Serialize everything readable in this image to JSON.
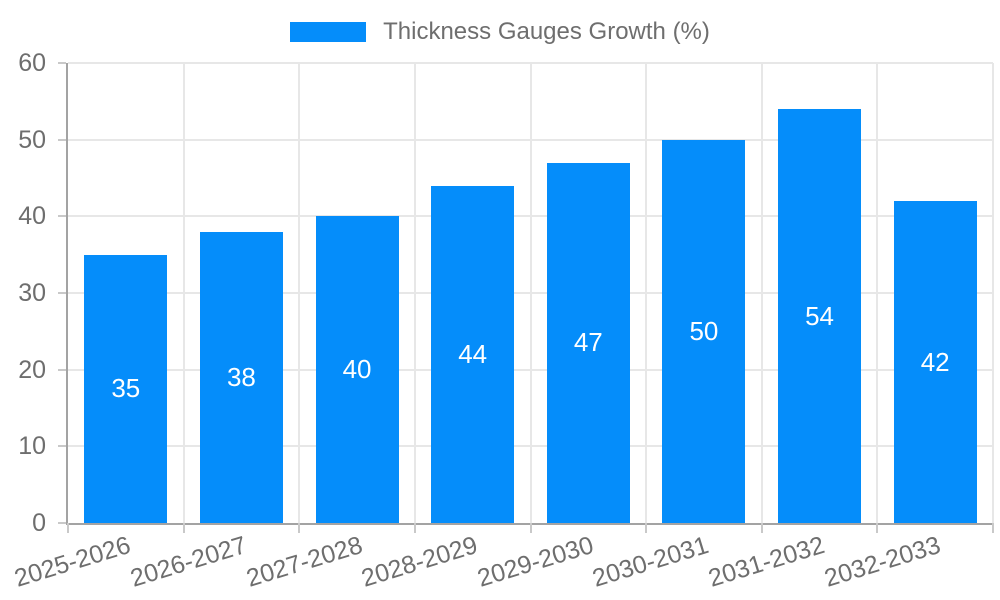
{
  "chart_data": {
    "type": "bar",
    "title": "Thickness Gauges Growth (%)",
    "categories": [
      "2025-2026",
      "2026-2027",
      "2027-2028",
      "2028-2029",
      "2029-2030",
      "2030-2031",
      "2031-2032",
      "2032-2033"
    ],
    "values": [
      35,
      38,
      40,
      44,
      47,
      50,
      54,
      42
    ],
    "xlabel": "",
    "ylabel": "",
    "ylim": [
      0,
      60
    ],
    "yticks": [
      0,
      10,
      20,
      30,
      40,
      50,
      60
    ],
    "grid": true,
    "legend_position": "top-center",
    "bar_color": "#058dfa",
    "bar_label_color": "#ffffff",
    "grid_color": "#e7e7e7",
    "axis_color": "#a3a3a3",
    "tick_color": "#c9c9c9",
    "text_color": "#6e6e6e"
  }
}
